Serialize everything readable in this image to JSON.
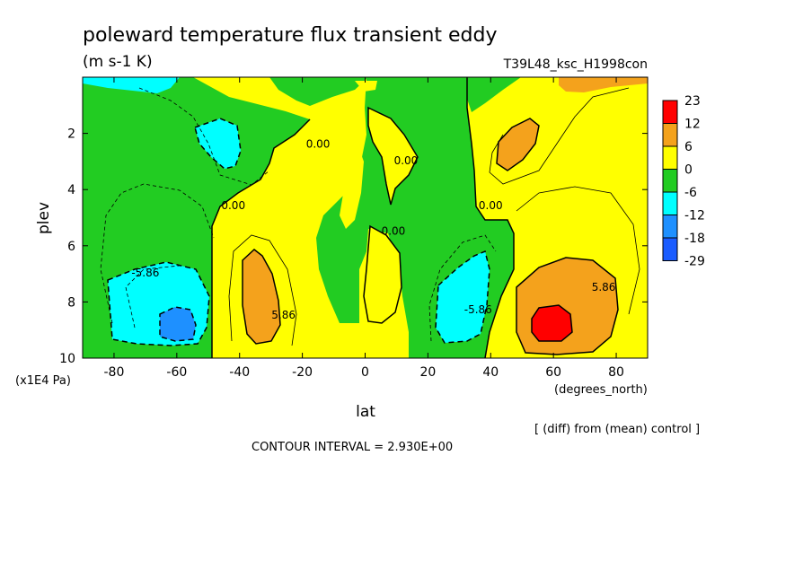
{
  "chart_data": {
    "type": "heatmap",
    "title": "poleward temperature flux transient eddy",
    "units": "(m s-1 K)",
    "run_label": "T39L48_ksc_H1998con",
    "xlabel": "lat",
    "x_units": "(degrees_north)",
    "ylabel": "plev",
    "y_units": "(x1E4 Pa)",
    "xlim": [
      -90,
      90
    ],
    "ylim": [
      10,
      0
    ],
    "x_ticks": [
      "-80",
      "-60",
      "-40",
      "-20",
      "0",
      "20",
      "40",
      "60",
      "80"
    ],
    "x_tick_values": [
      -80,
      -60,
      -40,
      -20,
      0,
      20,
      40,
      60,
      80
    ],
    "y_ticks": [
      "2",
      "4",
      "6",
      "8",
      "10"
    ],
    "y_tick_values": [
      2,
      4,
      6,
      8,
      10
    ],
    "colorbar": {
      "labels": [
        "23",
        "12",
        "6",
        "0",
        "-6",
        "-12",
        "-18",
        "-29"
      ],
      "colors": [
        "#ff0000",
        "#f4a21c",
        "#ffff00",
        "#22cc22",
        "#00ffff",
        "#1e90ff",
        "#1a5cff"
      ]
    },
    "contour_labels": [
      {
        "text": "0.00",
        "lat": -42,
        "plev": 4.7
      },
      {
        "text": "0.00",
        "lat": -15,
        "plev": 2.5
      },
      {
        "text": "0.00",
        "lat": 13,
        "plev": 3.1
      },
      {
        "text": "0.00",
        "lat": 40,
        "plev": 4.7
      },
      {
        "text": "0.00",
        "lat": 9,
        "plev": 5.6
      },
      {
        "text": "-5.86",
        "lat": -70,
        "plev": 7.1
      },
      {
        "text": "5.86",
        "lat": -26,
        "plev": 8.6
      },
      {
        "text": "-5.86",
        "lat": 36,
        "plev": 8.4
      },
      {
        "text": "5.86",
        "lat": 76,
        "plev": 7.6
      }
    ],
    "contour_interval_text": "CONTOUR INTERVAL = 2.930E+00",
    "footer_note": "[ (diff) from (mean) control ]"
  }
}
